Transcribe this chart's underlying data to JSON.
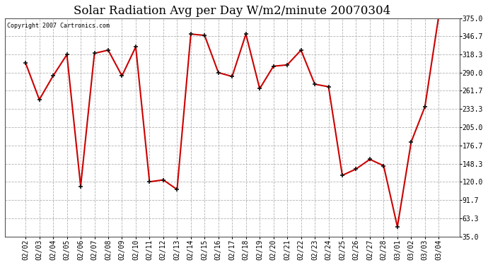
{
  "title": "Solar Radiation Avg per Day W/m2/minute 20070304",
  "copyright": "Copyright 2007 Cartronics.com",
  "dates": [
    "02/02",
    "02/03",
    "02/04",
    "02/05",
    "02/06",
    "02/07",
    "02/08",
    "02/09",
    "02/10",
    "02/11",
    "02/12",
    "02/13",
    "02/14",
    "02/15",
    "02/16",
    "02/17",
    "02/18",
    "02/19",
    "02/20",
    "02/21",
    "02/22",
    "02/23",
    "02/24",
    "02/25",
    "02/26",
    "02/27",
    "02/28",
    "03/01",
    "03/02",
    "03/03",
    "03/04"
  ],
  "values": [
    305,
    248,
    285,
    318,
    113,
    320,
    325,
    285,
    330,
    120,
    123,
    108,
    350,
    348,
    290,
    284,
    350,
    265,
    300,
    302,
    325,
    272,
    268,
    130,
    140,
    155,
    145,
    50,
    182,
    237,
    378
  ],
  "line_color": "#cc0000",
  "bg_color": "#ffffff",
  "grid_color": "#aaaaaa",
  "ylim": [
    35.0,
    375.0
  ],
  "ytick_values": [
    35.0,
    63.3,
    91.7,
    120.0,
    148.3,
    176.7,
    205.0,
    233.3,
    261.7,
    290.0,
    318.3,
    346.7,
    375.0
  ],
  "ytick_labels": [
    "35.0",
    "63.3",
    "91.7",
    "120.0",
    "148.3",
    "176.7",
    "205.0",
    "233.3",
    "261.7",
    "290.0",
    "318.3",
    "346.7",
    "375.0"
  ],
  "title_fontsize": 12,
  "tick_fontsize": 7,
  "copyright_fontsize": 6,
  "figwidth": 6.9,
  "figheight": 3.75,
  "dpi": 100
}
